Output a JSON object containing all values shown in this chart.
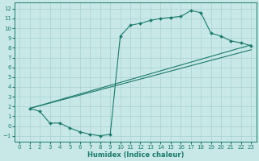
{
  "background_color": "#c8e8e8",
  "grid_color": "#a8d0d0",
  "line_color": "#1a7a6a",
  "xlabel": "Humidex (Indice chaleur)",
  "xlim": [
    -0.5,
    23.5
  ],
  "ylim": [
    -1.6,
    12.6
  ],
  "xticks": [
    0,
    1,
    2,
    3,
    4,
    5,
    6,
    7,
    8,
    9,
    10,
    11,
    12,
    13,
    14,
    15,
    16,
    17,
    18,
    19,
    20,
    21,
    22,
    23
  ],
  "yticks": [
    -1,
    0,
    1,
    2,
    3,
    4,
    5,
    6,
    7,
    8,
    9,
    10,
    11,
    12
  ],
  "main_x": [
    1,
    2,
    3,
    4,
    5,
    6,
    7,
    8,
    9,
    10,
    11,
    12,
    13,
    14,
    15,
    16,
    17,
    18,
    19,
    20,
    21,
    22,
    23
  ],
  "main_y": [
    1.8,
    1.5,
    0.3,
    0.3,
    -0.2,
    -0.6,
    -0.85,
    -1.0,
    -0.85,
    9.2,
    10.3,
    10.5,
    10.8,
    11.0,
    11.1,
    11.2,
    11.8,
    11.6,
    9.5,
    9.2,
    8.7,
    8.5,
    8.2
  ],
  "line1_x": [
    1,
    23
  ],
  "line1_y": [
    1.8,
    7.8
  ],
  "line2_x": [
    1,
    23
  ],
  "line2_y": [
    1.8,
    8.3
  ],
  "figsize": [
    3.2,
    2.0
  ],
  "dpi": 100
}
